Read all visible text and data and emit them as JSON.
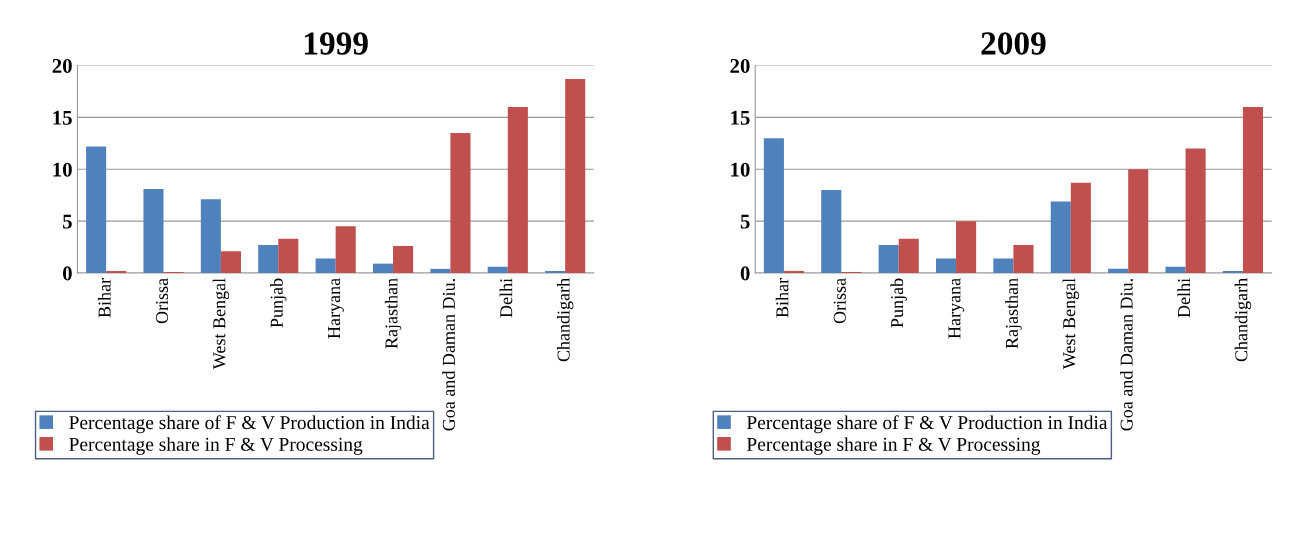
{
  "chart_data": [
    {
      "type": "bar",
      "title": "1999",
      "categories": [
        "Bihar",
        "Orissa",
        "West Bengal",
        "Punjab",
        "Haryana",
        "Rajasthan",
        "Goa and Daman Diu.",
        "Delhi",
        "Chandigarh"
      ],
      "series": [
        {
          "name": "Percentage share of F & V Production in India",
          "color": "#4f81bd",
          "values": [
            12.2,
            8.1,
            7.1,
            2.7,
            1.4,
            0.9,
            0.4,
            0.6,
            0.2
          ]
        },
        {
          "name": "Percentage share in F & V Processing",
          "color": "#c0504d",
          "values": [
            0.2,
            0.1,
            2.1,
            3.3,
            4.5,
            2.6,
            13.5,
            16,
            18.7
          ]
        }
      ],
      "ylim": [
        0,
        20
      ],
      "yticks": [
        0,
        5,
        10,
        15,
        20
      ],
      "grid": "y",
      "legend": "bottom"
    },
    {
      "type": "bar",
      "title": "2009",
      "categories": [
        "Bihar",
        "Orissa",
        "Punjab",
        "Haryana",
        "Rajasthan",
        "West Bengal",
        "Goa and Daman Diu.",
        "Delhi",
        "Chandigarh"
      ],
      "series": [
        {
          "name": "Percentage share of F & V Production in India",
          "color": "#4f81bd",
          "values": [
            13,
            8,
            2.7,
            1.4,
            1.4,
            6.9,
            0.4,
            0.6,
            0.2
          ]
        },
        {
          "name": "Percentage share in F & V Processing",
          "color": "#c0504d",
          "values": [
            0.2,
            0.1,
            3.3,
            5,
            2.7,
            8.7,
            10,
            12,
            16
          ]
        }
      ],
      "ylim": [
        0,
        20
      ],
      "yticks": [
        0,
        5,
        10,
        15,
        20
      ],
      "grid": "y",
      "legend": "bottom"
    }
  ]
}
